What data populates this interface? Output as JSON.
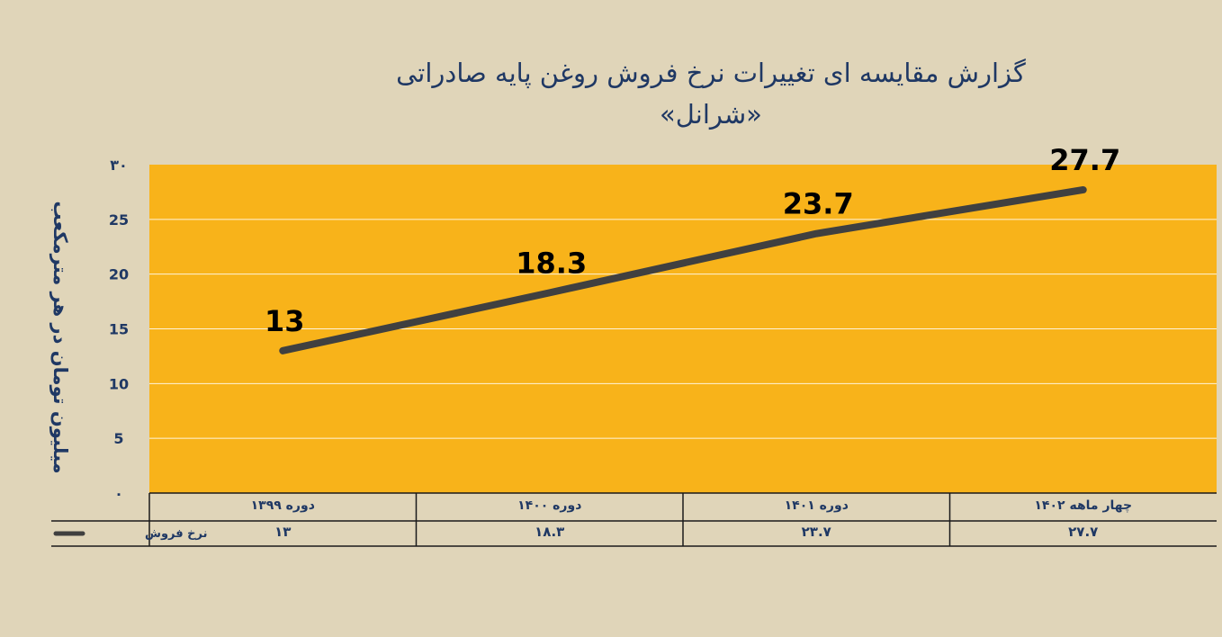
{
  "chart_data": {
    "type": "line",
    "title": "گزارش مقایسه ای تغییرات نرخ فروش روغن پایه صادراتی «شرانل»",
    "ylabel": "میلیون تومان در هر مترمکعب",
    "ylim": [
      0,
      30
    ],
    "yticks": [
      "۰",
      "5",
      "10",
      "15",
      "20",
      "25",
      "۳۰"
    ],
    "categories": [
      "دوره ۱۳۹۹",
      "دوره ۱۴۰۰",
      "دوره ۱۴۰۱",
      "چهار ماهه ۱۴۰۲"
    ],
    "series": [
      {
        "name": "نرخ فروش",
        "values": [
          13,
          18.3,
          23.7,
          27.7
        ],
        "data_labels": [
          "13",
          "18.3",
          "23.7",
          "27.7"
        ],
        "table_values": [
          "۱۳",
          "۱۸.۳",
          "۲۳.۷",
          "۲۷.۷"
        ],
        "color": "#404040"
      }
    ],
    "grid": true,
    "legend": "data-table",
    "plot_background": "#f8b31a",
    "page_background": "#e0d5b9",
    "text_color": "#1f3864"
  }
}
